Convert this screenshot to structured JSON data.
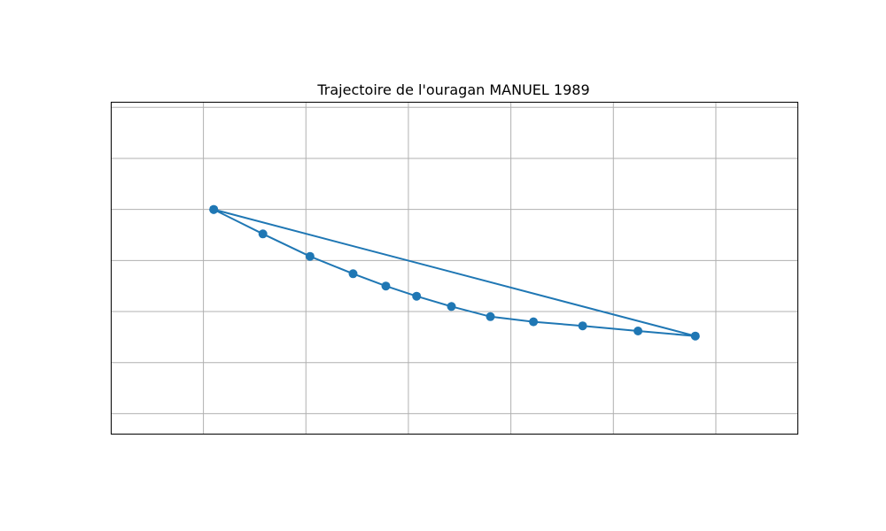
{
  "chart_data": {
    "type": "line",
    "title": "Trajectoire de l'ouragan MANUEL 1989",
    "xlabel": "",
    "ylabel": "",
    "xlim": [
      -1.9,
      4.8
    ],
    "ylim": [
      -3.2,
      3.3
    ],
    "x_gridlines": [
      -1,
      0,
      1,
      2,
      3,
      4
    ],
    "y_gridlines": [
      -2.8,
      -1.8,
      -0.8,
      0.2,
      1.2,
      2.2,
      3.2
    ],
    "grid": true,
    "legend": "none",
    "color": "#1f77b4",
    "series": [
      {
        "x": [
          -0.9,
          -0.42,
          0.04,
          0.46,
          0.78,
          1.08,
          1.42,
          1.8,
          2.22,
          2.7,
          3.24,
          3.8,
          -0.9
        ],
        "y": [
          1.2,
          0.72,
          0.28,
          -0.06,
          -0.3,
          -0.5,
          -0.7,
          -0.9,
          -1.0,
          -1.08,
          -1.18,
          -1.28,
          1.2
        ]
      }
    ]
  }
}
